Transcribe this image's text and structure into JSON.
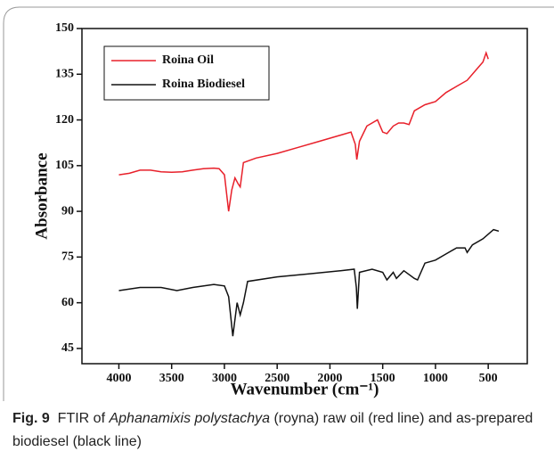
{
  "chart_data": {
    "type": "line",
    "y_label": "Absorbance",
    "x_label": "Wavenumber (cm⁻¹)",
    "xlim": [
      4350,
      130
    ],
    "ylim": [
      40,
      150
    ],
    "xticks": [
      4000,
      3500,
      3000,
      2500,
      2000,
      1500,
      1000,
      500
    ],
    "yticks": [
      45,
      60,
      75,
      90,
      105,
      120,
      135,
      150
    ],
    "legend": "upper left",
    "series": [
      {
        "name": "Roina Oil",
        "color": "#e8202a",
        "x": [
          4000,
          3900,
          3800,
          3700,
          3600,
          3500,
          3400,
          3300,
          3200,
          3100,
          3050,
          3000,
          2960,
          2930,
          2900,
          2870,
          2850,
          2820,
          2700,
          2500,
          2300,
          2100,
          1900,
          1800,
          1760,
          1745,
          1720,
          1650,
          1550,
          1500,
          1460,
          1400,
          1350,
          1300,
          1250,
          1200,
          1100,
          1000,
          900,
          800,
          700,
          600,
          550,
          520,
          500
        ],
        "values": [
          102,
          102.5,
          103.5,
          103.5,
          103,
          102.8,
          103,
          103.5,
          104,
          104.2,
          104,
          102,
          90,
          97,
          101,
          99,
          98,
          106,
          107.5,
          109,
          111,
          113,
          115,
          116,
          112,
          107,
          113,
          118,
          120,
          116,
          115.5,
          118,
          119,
          119,
          118.5,
          123,
          125,
          126,
          129,
          131,
          133,
          137,
          139,
          142,
          140
        ]
      },
      {
        "name": "Roina Biodiesel",
        "color": "#111111",
        "x": [
          4000,
          3800,
          3600,
          3450,
          3300,
          3100,
          3000,
          2960,
          2920,
          2880,
          2850,
          2820,
          2780,
          2500,
          2200,
          1900,
          1770,
          1750,
          1740,
          1720,
          1600,
          1500,
          1460,
          1400,
          1370,
          1300,
          1200,
          1170,
          1100,
          1000,
          900,
          800,
          720,
          700,
          650,
          550,
          450,
          400
        ],
        "values": [
          64,
          65,
          65,
          64,
          65,
          66,
          65.5,
          62,
          49,
          60,
          56,
          60,
          67,
          68.5,
          69.5,
          70.5,
          71,
          65,
          58,
          70,
          71,
          70,
          67.5,
          70,
          68,
          70.5,
          68,
          67.5,
          73,
          74,
          76,
          78,
          78,
          76.5,
          79,
          81,
          84,
          83.5
        ]
      }
    ]
  },
  "caption": {
    "label": "Fig. 9",
    "before": "FTIR of",
    "italic": "Aphanamixis polystachya",
    "after": "(royna) raw oil (red line) and as-prepared biodiesel (black line)"
  }
}
